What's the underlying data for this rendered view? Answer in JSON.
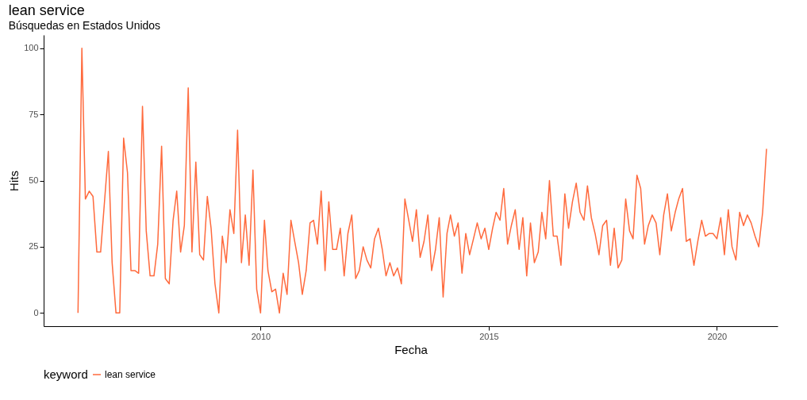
{
  "chart_data": {
    "type": "line",
    "title": "lean service",
    "subtitle": "Búsquedas en Estados Unidos",
    "xlabel": "Fecha",
    "ylabel": "Hits",
    "legend_title": "keyword",
    "legend": "bottom",
    "grid": false,
    "marker": "none",
    "line_style": "solid",
    "xlim": [
      "2005-04",
      "2021-05"
    ],
    "xticks": [
      {
        "value": "2010",
        "label": "2010"
      },
      {
        "value": "2015",
        "label": "2015"
      },
      {
        "value": "2020",
        "label": "2020"
      }
    ],
    "ylim": [
      -5,
      105
    ],
    "yticks": [
      0,
      25,
      50,
      75,
      100
    ],
    "x": [
      "2006-01",
      "2006-02",
      "2006-03",
      "2006-04",
      "2006-05",
      "2006-06",
      "2006-07",
      "2006-08",
      "2006-09",
      "2006-10",
      "2006-11",
      "2006-12",
      "2007-01",
      "2007-02",
      "2007-03",
      "2007-04",
      "2007-05",
      "2007-06",
      "2007-07",
      "2007-08",
      "2007-09",
      "2007-10",
      "2007-11",
      "2007-12",
      "2008-01",
      "2008-02",
      "2008-03",
      "2008-04",
      "2008-05",
      "2008-06",
      "2008-07",
      "2008-08",
      "2008-09",
      "2008-10",
      "2008-11",
      "2008-12",
      "2009-01",
      "2009-02",
      "2009-03",
      "2009-04",
      "2009-05",
      "2009-06",
      "2009-07",
      "2009-08",
      "2009-09",
      "2009-10",
      "2009-11",
      "2009-12",
      "2010-01",
      "2010-02",
      "2010-03",
      "2010-04",
      "2010-05",
      "2010-06",
      "2010-07",
      "2010-08",
      "2010-09",
      "2010-10",
      "2010-11",
      "2010-12",
      "2011-01",
      "2011-02",
      "2011-03",
      "2011-04",
      "2011-05",
      "2011-06",
      "2011-07",
      "2011-08",
      "2011-09",
      "2011-10",
      "2011-11",
      "2011-12",
      "2012-01",
      "2012-02",
      "2012-03",
      "2012-04",
      "2012-05",
      "2012-06",
      "2012-07",
      "2012-08",
      "2012-09",
      "2012-10",
      "2012-11",
      "2012-12",
      "2013-01",
      "2013-02",
      "2013-03",
      "2013-04",
      "2013-05",
      "2013-06",
      "2013-07",
      "2013-08",
      "2013-09",
      "2013-10",
      "2013-11",
      "2013-12",
      "2014-01",
      "2014-02",
      "2014-03",
      "2014-04",
      "2014-05",
      "2014-06",
      "2014-07",
      "2014-08",
      "2014-09",
      "2014-10",
      "2014-11",
      "2014-12",
      "2015-01",
      "2015-02",
      "2015-03",
      "2015-04",
      "2015-05",
      "2015-06",
      "2015-07",
      "2015-08",
      "2015-09",
      "2015-10",
      "2015-11",
      "2015-12",
      "2016-01",
      "2016-02",
      "2016-03",
      "2016-04",
      "2016-05",
      "2016-06",
      "2016-07",
      "2016-08",
      "2016-09",
      "2016-10",
      "2016-11",
      "2016-12",
      "2017-01",
      "2017-02",
      "2017-03",
      "2017-04",
      "2017-05",
      "2017-06",
      "2017-07",
      "2017-08",
      "2017-09",
      "2017-10",
      "2017-11",
      "2017-12",
      "2018-01",
      "2018-02",
      "2018-03",
      "2018-04",
      "2018-05",
      "2018-06",
      "2018-07",
      "2018-08",
      "2018-09",
      "2018-10",
      "2018-11",
      "2018-12",
      "2019-01",
      "2019-02",
      "2019-03",
      "2019-04",
      "2019-05",
      "2019-06",
      "2019-07",
      "2019-08",
      "2019-09",
      "2019-10",
      "2019-11",
      "2019-12",
      "2020-01",
      "2020-02",
      "2020-03",
      "2020-04",
      "2020-05",
      "2020-06",
      "2020-07",
      "2020-08",
      "2020-09",
      "2020-10",
      "2020-11",
      "2020-12",
      "2021-01",
      "2021-02"
    ],
    "series": [
      {
        "name": "lean service",
        "color": "#ff6a3d",
        "values": [
          0,
          100,
          43,
          46,
          44,
          23,
          23,
          42,
          61,
          19,
          0,
          0,
          66,
          53,
          16,
          16,
          15,
          78,
          31,
          14,
          14,
          26,
          63,
          13,
          11,
          35,
          46,
          23,
          33,
          85,
          23,
          57,
          22,
          20,
          44,
          32,
          11,
          0,
          29,
          19,
          39,
          30,
          69,
          19,
          37,
          18,
          54,
          9,
          0,
          35,
          16,
          8,
          9,
          0,
          15,
          7,
          35,
          27,
          19,
          7,
          16,
          34,
          35,
          26,
          46,
          16,
          42,
          24,
          24,
          32,
          14,
          30,
          37,
          13,
          16,
          25,
          20,
          17,
          28,
          32,
          24,
          14,
          19,
          14,
          17,
          11,
          43,
          35,
          27,
          39,
          21,
          27,
          37,
          16,
          24,
          36,
          6,
          30,
          37,
          29,
          34,
          15,
          30,
          22,
          28,
          34,
          28,
          32,
          24,
          32,
          38,
          35,
          47,
          26,
          33,
          39,
          24,
          36,
          14,
          34,
          19,
          23,
          38,
          28,
          50,
          29,
          29,
          18,
          45,
          32,
          42,
          49,
          38,
          35,
          48,
          36,
          30,
          22,
          33,
          35,
          18,
          32,
          17,
          20,
          43,
          31,
          28,
          52,
          47,
          26,
          33,
          37,
          34,
          22,
          37,
          45,
          31,
          38,
          43,
          47,
          27,
          28,
          18,
          27,
          35,
          29,
          30,
          30,
          28,
          36,
          22,
          39,
          25,
          20,
          38,
          33,
          37,
          34,
          29,
          25,
          38,
          62
        ]
      }
    ]
  }
}
